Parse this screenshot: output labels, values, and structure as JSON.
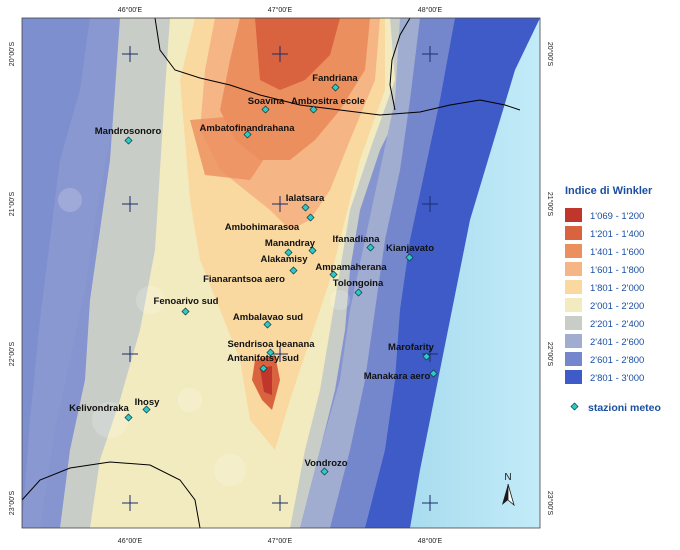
{
  "map": {
    "top_ticks": [
      "46°00'E",
      "47°00'E",
      "48°00'E"
    ],
    "bottom_ticks": [
      "46°00'E",
      "47°00'E",
      "48°00'E"
    ],
    "left_ticks": [
      "20°00'S",
      "21°00'S",
      "22°00'S",
      "23°00'S"
    ],
    "right_ticks": [
      "20°00'S",
      "21°00'S",
      "22°00'S",
      "23°00'S"
    ],
    "north_label": "N",
    "colors": {
      "sea": "#b6e4f5",
      "boundary": "#000000",
      "station_fill": "#31c8c8"
    }
  },
  "stations": [
    {
      "name": "Fandriana"
    },
    {
      "name": "Soavina"
    },
    {
      "name": "Ambositra ecole"
    },
    {
      "name": "Mandrosonoro"
    },
    {
      "name": "Ambatofinandrahana"
    },
    {
      "name": "Ialatsara"
    },
    {
      "name": "Ambohimarasoa"
    },
    {
      "name": "Ifanadiana"
    },
    {
      "name": "Manandray"
    },
    {
      "name": "Kianjavato"
    },
    {
      "name": "Alakamisy"
    },
    {
      "name": "Ampamaherana"
    },
    {
      "name": "Fianarantsoa aero"
    },
    {
      "name": "Tolongoina"
    },
    {
      "name": "Fenoarivo sud"
    },
    {
      "name": "Ambalavao sud"
    },
    {
      "name": "Sendrisoa beanana"
    },
    {
      "name": "Marofarity"
    },
    {
      "name": "Antanifotsy sud"
    },
    {
      "name": "Manakara aero"
    },
    {
      "name": "Ihosy"
    },
    {
      "name": "Kelivondraka"
    },
    {
      "name": "Vondrozo"
    }
  ],
  "legend": {
    "title": "Indice di Winkler",
    "classes": [
      {
        "label": "1'069 - 1'200",
        "color": "#c0362c"
      },
      {
        "label": "1'201 - 1'400",
        "color": "#d9623f"
      },
      {
        "label": "1'401 - 1'600",
        "color": "#ec8f5e"
      },
      {
        "label": "1'601 - 1'800",
        "color": "#f5b585"
      },
      {
        "label": "1'801 - 2'000",
        "color": "#f9d9a0"
      },
      {
        "label": "2'001 - 2'200",
        "color": "#f3ebc0"
      },
      {
        "label": "2'201 - 2'400",
        "color": "#c9cdc8"
      },
      {
        "label": "2'401 - 2'600",
        "color": "#a0acd0"
      },
      {
        "label": "2'601 - 2'800",
        "color": "#7487cd"
      },
      {
        "label": "2'801 - 3'000",
        "color": "#3e5bc7"
      }
    ],
    "stations_label": "stazioni meteo"
  }
}
